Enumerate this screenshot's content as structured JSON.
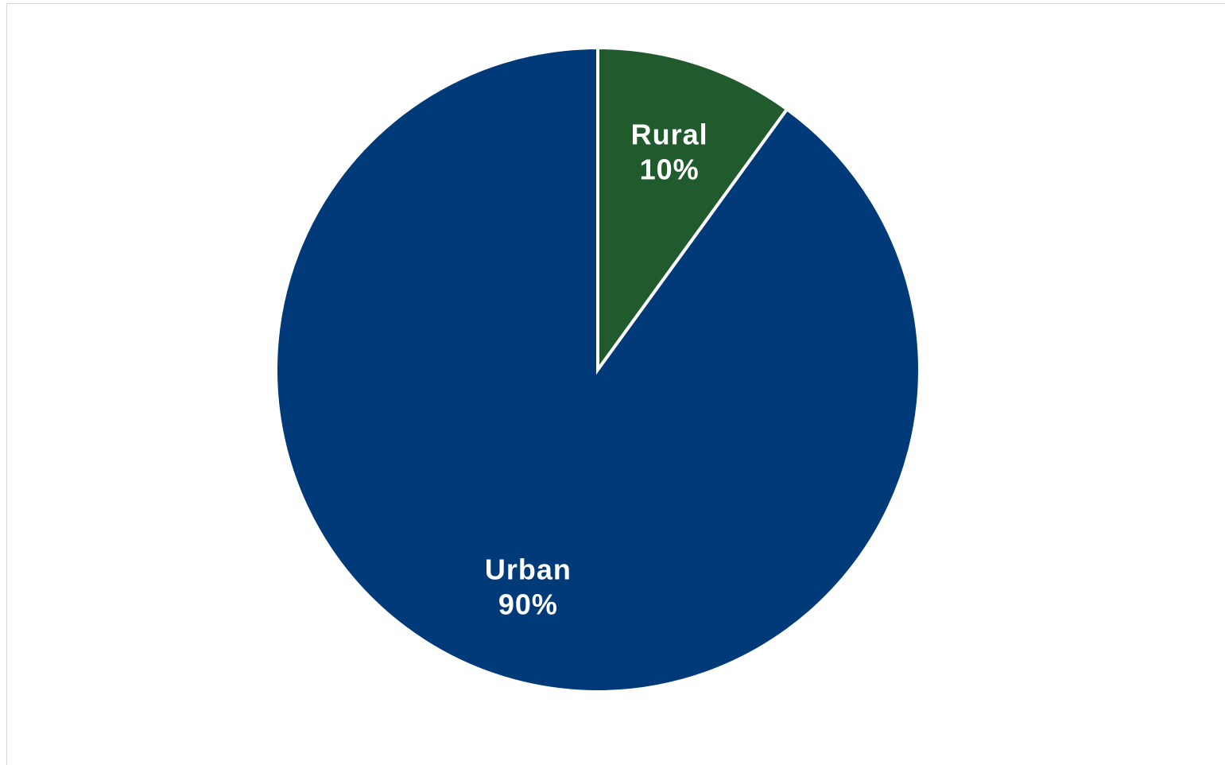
{
  "chart_data": {
    "type": "pie",
    "title": "",
    "start_angle_deg": 0,
    "direction": "clockwise",
    "slices": [
      {
        "name": "Rural",
        "value": 10,
        "percent_label": "10%",
        "color": "#215a2c"
      },
      {
        "name": "Urban",
        "value": 90,
        "percent_label": "90%",
        "color": "#003a78"
      }
    ],
    "legend": "none",
    "data_labels": "inside"
  },
  "colors": {
    "background": "#ffffff",
    "slice_border": "#ffffff",
    "frame_border": "#d9d9d9",
    "label_text": "#ffffff"
  }
}
